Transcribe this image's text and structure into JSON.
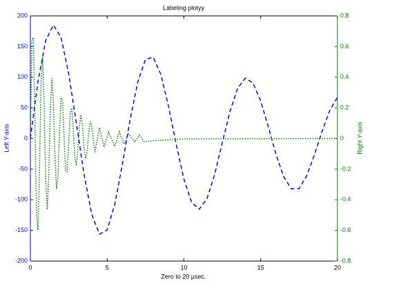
{
  "chart_data": {
    "type": "line",
    "title": "Labeling plotyy",
    "x_label": "Zero to 20 µsec.",
    "y_label": "Left Y-axis",
    "y2_label": "Right Y-axis",
    "xlim": [
      0,
      20
    ],
    "xticks": [
      0,
      5,
      10,
      15,
      20
    ],
    "ylim": [
      -200,
      200
    ],
    "yticks": [
      -200,
      -150,
      -100,
      -50,
      0,
      50,
      100,
      150,
      200
    ],
    "y2lim": [
      -0.8,
      0.8
    ],
    "y2ticks": [
      -0.8,
      -0.6,
      -0.4,
      -0.2,
      0,
      0.2,
      0.4,
      0.6,
      0.8
    ],
    "series": [
      {
        "color": "#0000ff",
        "axis": "y",
        "dash": "dashed",
        "x": [
          0,
          0.5,
          1,
          1.5,
          2,
          2.5,
          3,
          3.5,
          4,
          4.5,
          5,
          5.5,
          6,
          6.5,
          7,
          7.5,
          8,
          8.5,
          9,
          9.5,
          10,
          10.5,
          11,
          11.5,
          12,
          12.5,
          13,
          13.5,
          14,
          14.5,
          15,
          15.5,
          16,
          16.5,
          17,
          17.5,
          18,
          18.5,
          19,
          19.5,
          20
        ],
        "values": [
          0,
          93.5,
          160.0,
          185.0,
          164.6,
          105.6,
          24.3,
          -58.9,
          -123.9,
          -156.2,
          -149.4,
          -107.2,
          -41.4,
          31.1,
          92.6,
          129.0,
          132.6,
          104.4,
          52.5,
          -9.3,
          -66.0,
          -104.1,
          -115.4,
          -98.5,
          -59.0,
          -7.1,
          43.9,
          81.9,
          98.4,
          90.6,
          61.4,
          19.1,
          -25.9,
          -62.4,
          -82.2,
          -81.7,
          -61.1,
          -26.8,
          11.6,
          45.6,
          67.2
        ]
      },
      {
        "color": "#008000",
        "axis": "y2",
        "dash": "dotted",
        "x": [
          0,
          0.1,
          0.2,
          0.3,
          0.4,
          0.5,
          0.6,
          0.7,
          0.8,
          0.9,
          1,
          1.1,
          1.2,
          1.3,
          1.4,
          1.5,
          1.6,
          1.7,
          1.8,
          1.9,
          2,
          2.1,
          2.2,
          2.3,
          2.4,
          2.5,
          2.6,
          2.7,
          2.8,
          2.9,
          3,
          3.1,
          3.2,
          3.3,
          3.4,
          3.5,
          3.6,
          3.7,
          3.8,
          3.9,
          4,
          4.2,
          4.5,
          4.8,
          5.1,
          5.5,
          5.8,
          6.1,
          6.4,
          6.8,
          7.1,
          7.4,
          8,
          10,
          20
        ],
        "values": [
          0,
          0.64,
          0.658,
          0.097,
          -0.496,
          -0.597,
          -0.166,
          0.371,
          0.53,
          0.21,
          -0.264,
          -0.462,
          -0.236,
          0.176,
          0.393,
          0.246,
          -0.103,
          -0.329,
          -0.244,
          0.046,
          0.268,
          0.234,
          -0.002,
          -0.214,
          -0.218,
          -0.03,
          0.166,
          0.198,
          0.053,
          -0.125,
          -0.177,
          -0.069,
          0.089,
          0.154,
          0.077,
          -0.06,
          -0.131,
          -0.081,
          0.036,
          0.11,
          0.081,
          -0.09,
          0.072,
          -0.056,
          0.042,
          -0.051,
          0.044,
          -0.037,
          0.03,
          -0.024,
          0.022,
          -0.02,
          -0.015,
          -0.003,
          0
        ]
      }
    ]
  }
}
